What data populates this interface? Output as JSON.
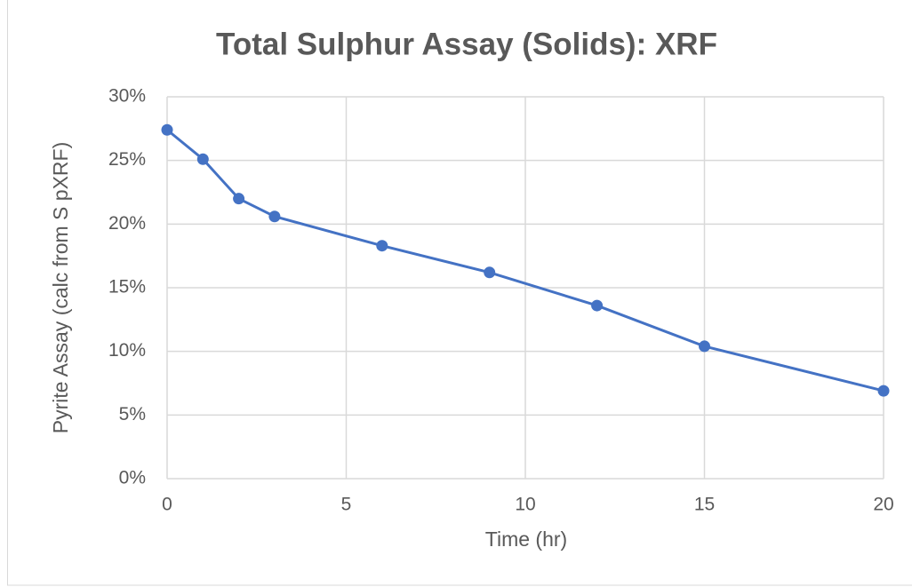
{
  "chart_data": {
    "type": "line",
    "title": "Total Sulphur Assay (Solids): XRF",
    "x_label": "Time (hr)",
    "y_label": "Pyrite Assay (calc from S pXRF)",
    "series": [
      {
        "name": "Pyrite Assay",
        "color": "#4472c4",
        "x": [
          0,
          1,
          2,
          3,
          6,
          9,
          12,
          15,
          20
        ],
        "values": [
          27.4,
          25.1,
          22.0,
          20.6,
          18.3,
          16.2,
          13.6,
          10.4,
          6.9
        ]
      }
    ],
    "xlim": [
      0,
      20
    ],
    "xticks": [
      0,
      5,
      10,
      15,
      20
    ],
    "ylim": [
      0,
      30
    ],
    "yticks": [
      {
        "value": 0,
        "label": "0%"
      },
      {
        "value": 5,
        "label": "5%"
      },
      {
        "value": 10,
        "label": "10%"
      },
      {
        "value": 15,
        "label": "15%"
      },
      {
        "value": 20,
        "label": "20%"
      },
      {
        "value": 25,
        "label": "25%"
      },
      {
        "value": 30,
        "label": "30%"
      }
    ],
    "grid": true
  }
}
